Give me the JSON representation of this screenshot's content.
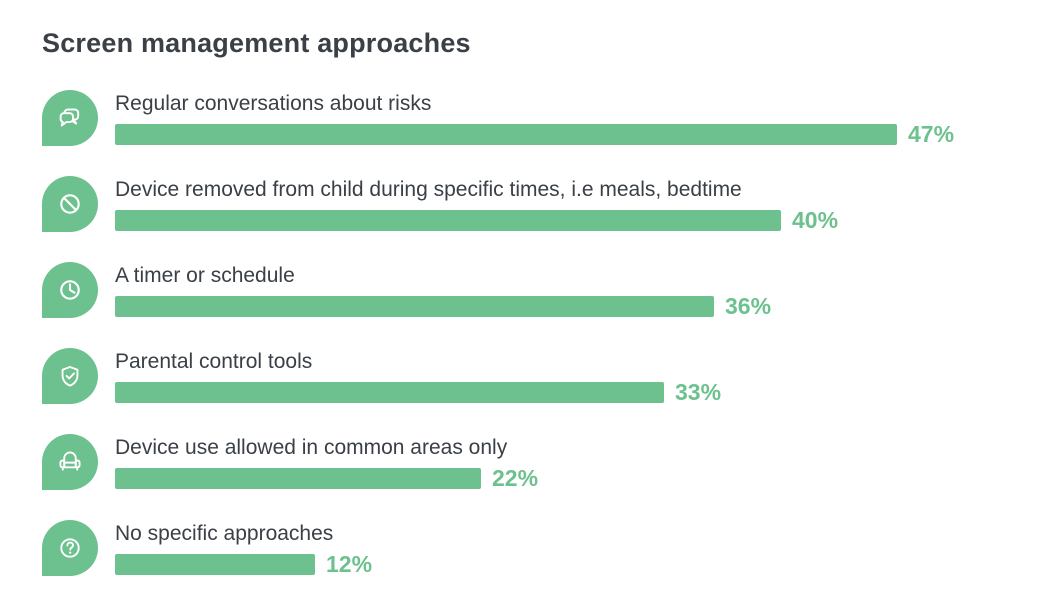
{
  "title": "Screen management approaches",
  "colors": {
    "accent": "#6CC18E",
    "text": "#3A4046",
    "background": "#FFFFFF"
  },
  "chart_data": {
    "type": "bar",
    "orientation": "horizontal",
    "title": "Screen management approaches",
    "unit": "%",
    "xlim": [
      0,
      47
    ],
    "grid": false,
    "legend": "none",
    "categories": [
      "Regular conversations about risks",
      "Device removed from child during specific times, i.e meals, bedtime",
      "A timer or schedule",
      "Parental control tools",
      "Device use allowed in common areas only",
      "No specific approaches"
    ],
    "values": [
      47,
      40,
      36,
      33,
      22,
      12
    ],
    "value_labels": [
      "47%",
      "40%",
      "36%",
      "33%",
      "22%",
      "12%"
    ],
    "icons": [
      "chat-bubbles-icon",
      "prohibition-icon",
      "clock-icon",
      "shield-check-icon",
      "sofa-icon",
      "question-mark-icon"
    ]
  }
}
